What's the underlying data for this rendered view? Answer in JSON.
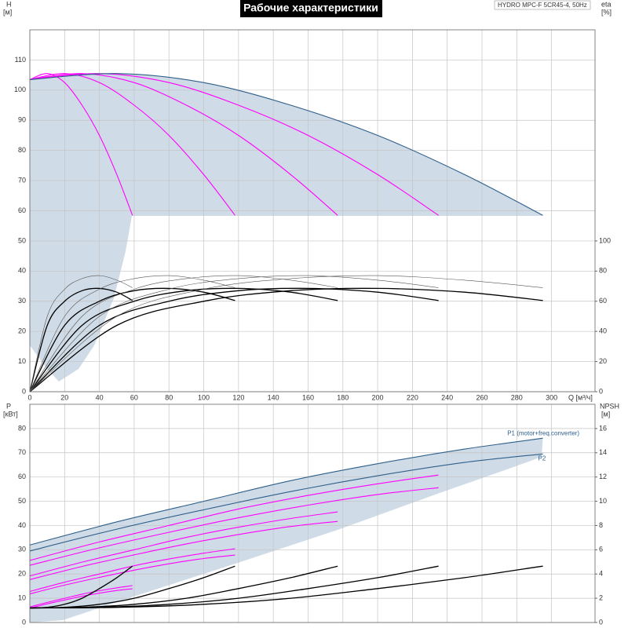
{
  "title": "Рабочие характеристики",
  "model": "HYDRO MPC-F 5CR45-4, 50Hz",
  "chart_data": [
    {
      "type": "line",
      "ylabel": "H",
      "yunit": "[м]",
      "y2label": "eta",
      "y2unit": "[%]",
      "xlabel": "Q [м³/ч]",
      "xlim": [
        0,
        325
      ],
      "xticks": [
        0,
        20,
        40,
        60,
        80,
        100,
        120,
        140,
        160,
        180,
        200,
        220,
        240,
        260,
        280,
        300
      ],
      "ylim": [
        0,
        120
      ],
      "yticks": [
        0,
        10,
        20,
        30,
        40,
        50,
        60,
        70,
        80,
        90,
        100,
        110
      ],
      "y2lim": [
        0,
        240
      ],
      "y2ticks": [
        0,
        20,
        40,
        60,
        80,
        100
      ],
      "grid": true,
      "series": [
        {
          "color": "#ff00ff",
          "x": [
            0,
            10,
            20,
            30,
            40,
            50,
            59
          ],
          "values": [
            103.5,
            105.5,
            102.5,
            95,
            85,
            72,
            58.5
          ]
        },
        {
          "color": "#ff00ff",
          "x": [
            0,
            20,
            40,
            60,
            80,
            100,
            118
          ],
          "values": [
            103.5,
            105.5,
            102.5,
            95,
            85,
            72,
            58.5
          ]
        },
        {
          "color": "#ff00ff",
          "x": [
            0,
            30,
            60,
            90,
            120,
            150,
            177
          ],
          "values": [
            103.5,
            105.5,
            102.5,
            95,
            85,
            72,
            58.5
          ]
        },
        {
          "color": "#ff00ff",
          "x": [
            0,
            40,
            80,
            120,
            160,
            200,
            235
          ],
          "values": [
            103.5,
            105.5,
            102.5,
            95,
            85,
            72,
            58.5
          ]
        },
        {
          "color": "#2e5f8a",
          "x": [
            0,
            50,
            100,
            150,
            200,
            250,
            295
          ],
          "values": [
            103.5,
            105.5,
            102.5,
            95,
            85,
            72,
            58.5
          ]
        },
        {
          "color": "#000000",
          "axis": "y2",
          "x": [
            0,
            10,
            20,
            30,
            40,
            50,
            59
          ],
          "values": [
            0,
            44,
            60,
            67,
            68.5,
            66,
            60.5
          ]
        },
        {
          "color": "#000000",
          "axis": "y2",
          "x": [
            0,
            20,
            40,
            60,
            80,
            100,
            118
          ],
          "values": [
            0,
            44,
            60,
            67,
            68.5,
            66,
            60.5
          ]
        },
        {
          "color": "#000000",
          "axis": "y2",
          "x": [
            0,
            30,
            60,
            90,
            120,
            150,
            177
          ],
          "values": [
            0,
            44,
            60,
            67,
            68.5,
            66,
            60.5
          ]
        },
        {
          "color": "#000000",
          "axis": "y2",
          "x": [
            0,
            40,
            80,
            120,
            160,
            200,
            235
          ],
          "values": [
            0,
            44,
            60,
            67,
            68.5,
            66,
            60.5
          ]
        },
        {
          "color": "#000000",
          "axis": "y2",
          "x": [
            0,
            50,
            100,
            150,
            200,
            250,
            295
          ],
          "values": [
            0,
            44,
            60,
            67,
            68.5,
            66,
            60.5
          ]
        },
        {
          "color": "#555555",
          "axis": "y2",
          "x": [
            0,
            10,
            20,
            30,
            40,
            50,
            59
          ],
          "values": [
            0,
            50,
            68,
            75,
            77,
            74,
            69
          ]
        },
        {
          "color": "#555555",
          "axis": "y2",
          "x": [
            0,
            20,
            40,
            60,
            80,
            100,
            118
          ],
          "values": [
            0,
            50,
            68,
            75,
            77,
            74,
            69
          ]
        },
        {
          "color": "#555555",
          "axis": "y2",
          "x": [
            0,
            30,
            60,
            90,
            120,
            150,
            177
          ],
          "values": [
            0,
            50,
            68,
            75,
            77,
            74,
            69
          ]
        },
        {
          "color": "#555555",
          "axis": "y2",
          "x": [
            0,
            40,
            80,
            120,
            160,
            200,
            235
          ],
          "values": [
            0,
            50,
            68,
            75,
            77,
            74,
            69
          ]
        },
        {
          "color": "#555555",
          "axis": "y2",
          "x": [
            0,
            50,
            100,
            150,
            200,
            250,
            295
          ],
          "values": [
            0,
            50,
            68,
            75,
            77,
            74,
            69
          ]
        }
      ]
    },
    {
      "type": "line",
      "ylabel": "P",
      "yunit": "[кВт]",
      "y2label": "NPSH",
      "y2unit": "[м]",
      "xlim": [
        0,
        325
      ],
      "ylim": [
        0,
        90
      ],
      "yticks": [
        0,
        10,
        20,
        30,
        40,
        50,
        60,
        70,
        80
      ],
      "y2lim": [
        0,
        18
      ],
      "y2ticks": [
        0,
        2,
        4,
        6,
        8,
        10,
        12,
        14,
        16
      ],
      "grid": true,
      "series": [
        {
          "color": "#ff00ff",
          "x": [
            0,
            10,
            20,
            30,
            40,
            50,
            59
          ],
          "values": [
            6.4,
            8.3,
            10,
            11.7,
            13.1,
            14.3,
            15.2
          ]
        },
        {
          "color": "#ff00ff",
          "x": [
            0,
            20,
            40,
            60,
            80,
            100,
            118
          ],
          "values": [
            12.8,
            16.6,
            20,
            23.4,
            26.2,
            28.6,
            30.4
          ]
        },
        {
          "color": "#ff00ff",
          "x": [
            0,
            30,
            60,
            90,
            120,
            150,
            177
          ],
          "values": [
            19.2,
            24.9,
            30,
            35.1,
            39.3,
            42.9,
            45.6
          ]
        },
        {
          "color": "#ff00ff",
          "x": [
            0,
            40,
            80,
            120,
            160,
            200,
            235
          ],
          "values": [
            25.6,
            33.2,
            40,
            46.8,
            52.4,
            57.2,
            60.8
          ]
        },
        {
          "name": "P1 (motor+freq.converter)",
          "color": "#2e5f8a",
          "x": [
            0,
            50,
            100,
            150,
            200,
            250,
            295
          ],
          "values": [
            32,
            41.5,
            50,
            58.5,
            65.5,
            71.5,
            76
          ]
        },
        {
          "color": "#ff00ff",
          "x": [
            0,
            10,
            20,
            30,
            40,
            50,
            59
          ],
          "values": [
            5.9,
            7.7,
            9.3,
            10.8,
            12.1,
            13.2,
            13.9
          ]
        },
        {
          "color": "#ff00ff",
          "x": [
            0,
            20,
            40,
            60,
            80,
            100,
            118
          ],
          "values": [
            11.8,
            15.4,
            18.6,
            21.6,
            24.2,
            26.4,
            27.8
          ]
        },
        {
          "color": "#ff00ff",
          "x": [
            0,
            30,
            60,
            90,
            120,
            150,
            177
          ],
          "values": [
            17.7,
            23.1,
            27.9,
            32.4,
            36.3,
            39.6,
            41.7
          ]
        },
        {
          "color": "#ff00ff",
          "x": [
            0,
            40,
            80,
            120,
            160,
            200,
            235
          ],
          "values": [
            23.6,
            30.8,
            37.2,
            43.2,
            48.4,
            52.8,
            55.6
          ]
        },
        {
          "name": "P2",
          "color": "#2e5f8a",
          "x": [
            0,
            50,
            100,
            150,
            200,
            250,
            295
          ],
          "values": [
            29.5,
            38.5,
            46.5,
            54,
            60.5,
            66,
            69.5
          ]
        },
        {
          "color": "#000000",
          "axis": "y2",
          "x": [
            0,
            10,
            20,
            30,
            40,
            50,
            59
          ],
          "values": [
            1.2,
            1.25,
            1.5,
            2,
            2.8,
            3.7,
            4.65
          ]
        },
        {
          "color": "#000000",
          "axis": "y2",
          "x": [
            0,
            20,
            40,
            60,
            80,
            100,
            118
          ],
          "values": [
            1.2,
            1.25,
            1.5,
            2,
            2.8,
            3.7,
            4.65
          ]
        },
        {
          "color": "#000000",
          "axis": "y2",
          "x": [
            0,
            30,
            60,
            90,
            120,
            150,
            177
          ],
          "values": [
            1.2,
            1.25,
            1.5,
            2,
            2.8,
            3.7,
            4.65
          ]
        },
        {
          "color": "#000000",
          "axis": "y2",
          "x": [
            0,
            40,
            80,
            120,
            160,
            200,
            235
          ],
          "values": [
            1.2,
            1.25,
            1.5,
            2,
            2.8,
            3.7,
            4.65
          ]
        },
        {
          "color": "#000000",
          "axis": "y2",
          "x": [
            0,
            50,
            100,
            150,
            200,
            250,
            295
          ],
          "values": [
            1.2,
            1.25,
            1.5,
            2,
            2.8,
            3.7,
            4.65
          ]
        }
      ]
    }
  ]
}
